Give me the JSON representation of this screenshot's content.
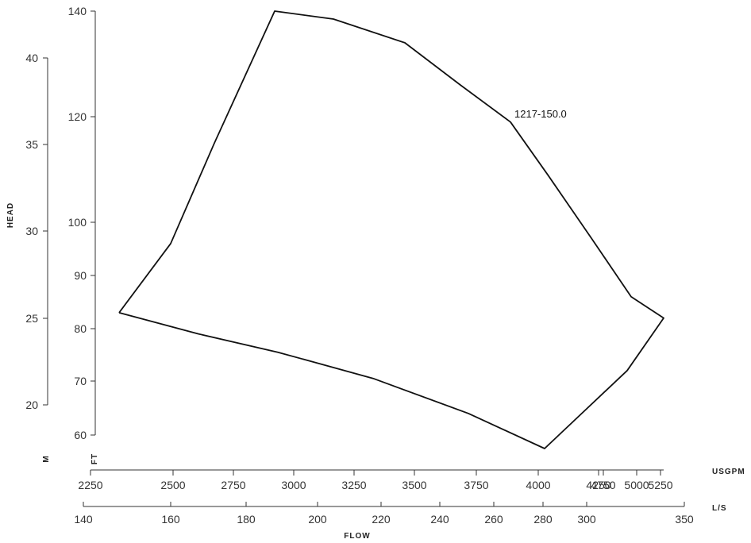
{
  "chart_data": {
    "type": "area",
    "title": "",
    "xlabel": "FLOW",
    "ylabel": "HEAD",
    "grid": false,
    "axes": {
      "ft": {
        "unit": "FT",
        "ticks": [
          60,
          70,
          80,
          90,
          100,
          120,
          140
        ]
      },
      "m": {
        "unit": "M",
        "ticks": [
          20,
          25,
          30,
          35,
          40
        ]
      },
      "usgpm": {
        "unit": "USGPM",
        "ticks": [
          2250,
          2500,
          2750,
          3000,
          3250,
          3500,
          3750,
          4000,
          4250,
          4750,
          5000,
          5250
        ]
      },
      "ls": {
        "unit": "L/S",
        "ticks": [
          140,
          160,
          180,
          200,
          220,
          240,
          260,
          280,
          300,
          350
        ]
      }
    },
    "series": [
      {
        "name": "1217-150.0",
        "unit_x": "USGPM",
        "unit_y": "FT",
        "outline": [
          {
            "x": 2335,
            "y": 83
          },
          {
            "x": 2540,
            "y": 96
          },
          {
            "x": 2750,
            "y": 115
          },
          {
            "x": 2970,
            "y": 140
          },
          {
            "x": 3250,
            "y": 138.5
          },
          {
            "x": 3550,
            "y": 134
          },
          {
            "x": 3900,
            "y": 126
          },
          {
            "x": 4225,
            "y": 119
          },
          {
            "x": 4400,
            "y": 109
          },
          {
            "x": 4650,
            "y": 97
          },
          {
            "x": 5000,
            "y": 86
          },
          {
            "x": 5330,
            "y": 82
          },
          {
            "x": 5100,
            "y": 72
          },
          {
            "x": 4850,
            "y": 65
          },
          {
            "x": 4425,
            "y": 57.5
          },
          {
            "x": 4000,
            "y": 64
          },
          {
            "x": 3500,
            "y": 70.5
          },
          {
            "x": 3000,
            "y": 75.5
          },
          {
            "x": 2700,
            "y": 79
          },
          {
            "x": 2335,
            "y": 83
          }
        ]
      }
    ]
  }
}
